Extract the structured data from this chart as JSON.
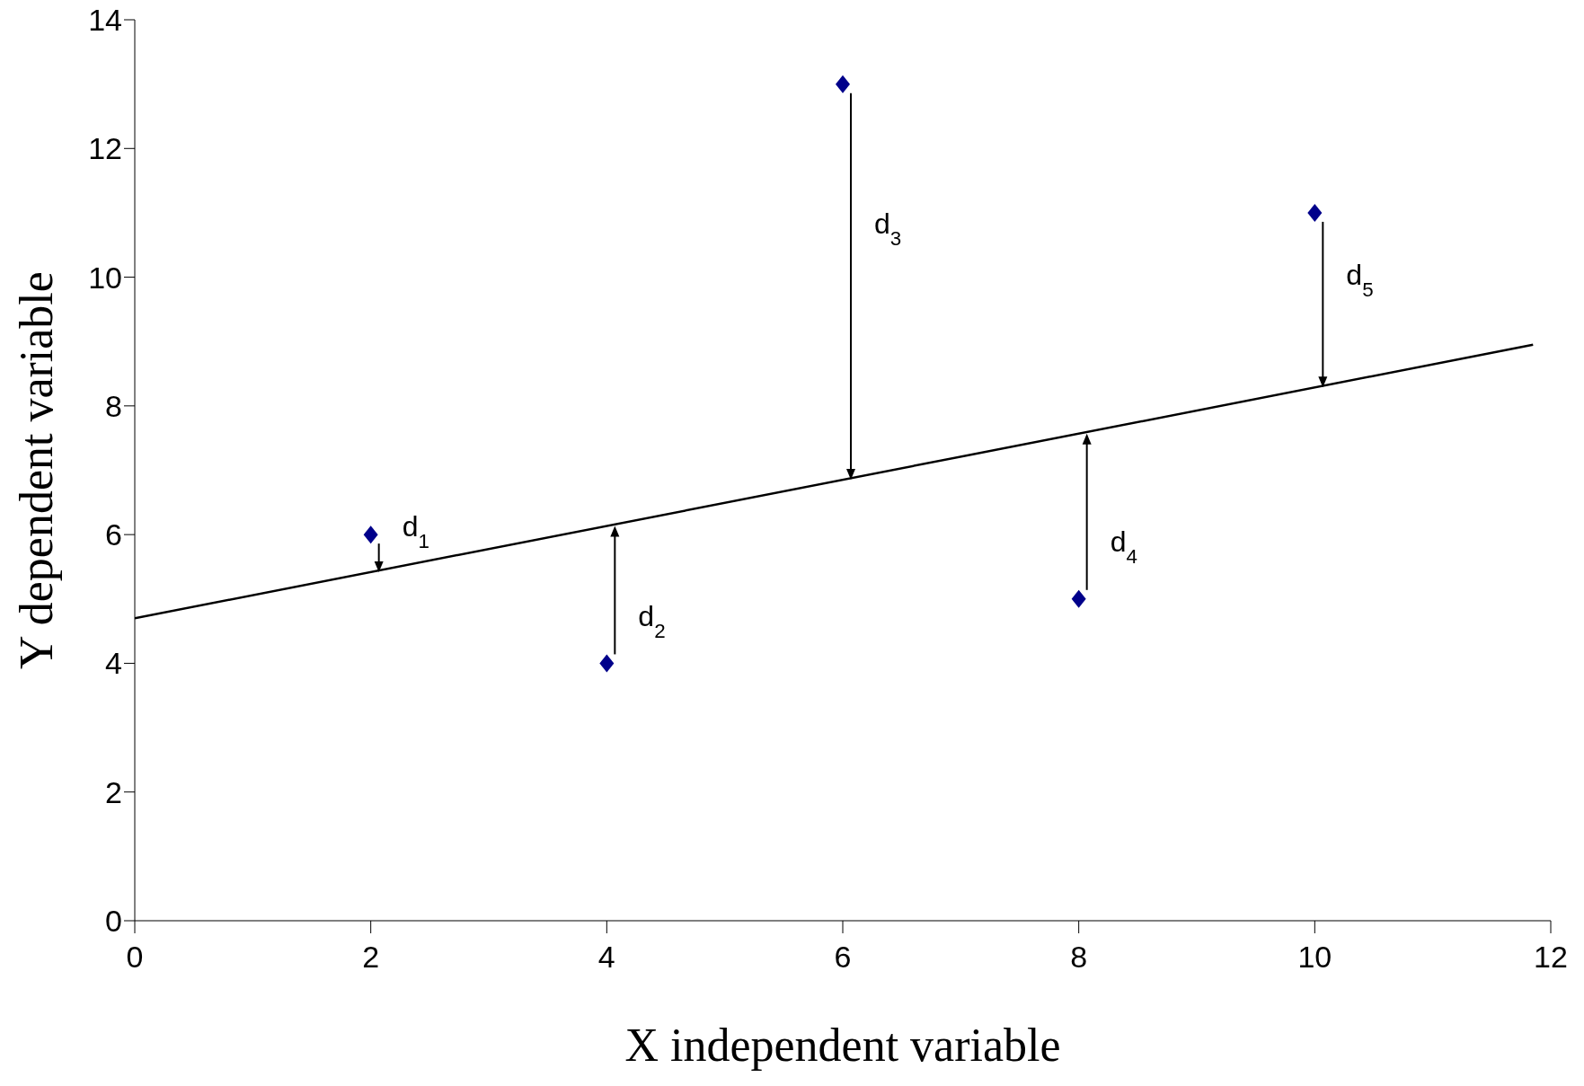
{
  "chart_data": {
    "type": "scatter",
    "xlabel": "X independent variable",
    "ylabel": "Y dependent variable",
    "xlim": [
      0,
      12
    ],
    "xticks": [
      0,
      2,
      4,
      6,
      8,
      10,
      12
    ],
    "ylim": [
      0,
      14
    ],
    "yticks": [
      0,
      2,
      4,
      6,
      8,
      10,
      12,
      14
    ],
    "series": [
      {
        "x": [
          2,
          4,
          6,
          8,
          10
        ],
        "values": [
          6,
          4,
          13,
          5,
          11
        ],
        "color": "#00008b",
        "marker": "diamond"
      },
      {
        "type": "line",
        "x": [
          0,
          11.85
        ],
        "values": [
          4.7,
          8.95
        ],
        "color": "#000000",
        "marker": "none"
      }
    ],
    "annotations": [
      "d$_{1}$",
      "d$_{2}$",
      "d$_{3}$",
      "d$_{4}$",
      "d$_{5}$"
    ]
  }
}
